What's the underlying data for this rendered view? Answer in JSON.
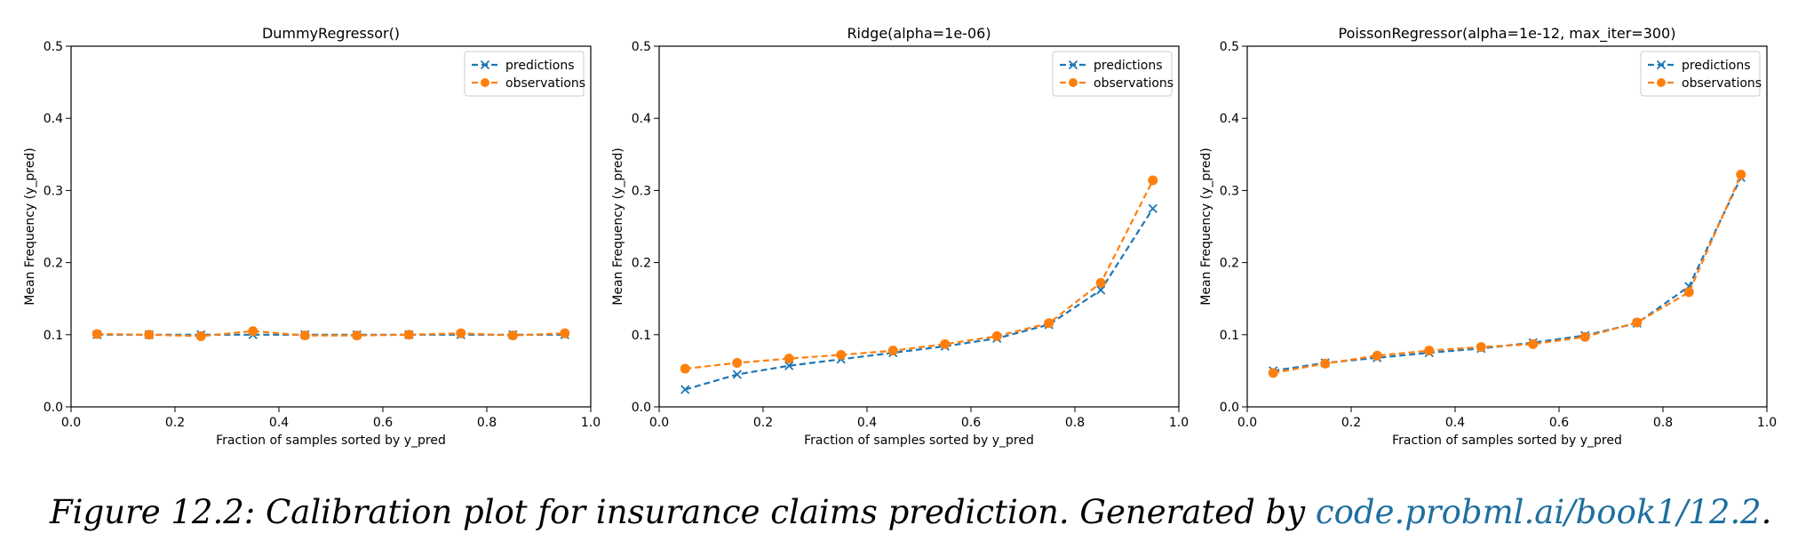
{
  "chart_data": [
    {
      "type": "line",
      "title": "DummyRegressor()",
      "xlabel": "Fraction of samples sorted by y_pred",
      "ylabel": "Mean Frequency (y_pred)",
      "xlim": [
        0.0,
        1.0
      ],
      "ylim": [
        0.0,
        0.5
      ],
      "xticks": [
        "0.0",
        "0.2",
        "0.4",
        "0.6",
        "0.8",
        "1.0"
      ],
      "yticks": [
        "0.0",
        "0.1",
        "0.2",
        "0.3",
        "0.4",
        "0.5"
      ],
      "legend_position": "top-right",
      "grid": false,
      "x": [
        0.05,
        0.15,
        0.25,
        0.35,
        0.45,
        0.55,
        0.65,
        0.75,
        0.85,
        0.95
      ],
      "series": [
        {
          "name": "predictions",
          "color": "#1f77b4",
          "marker": "x",
          "values": [
            0.1,
            0.1,
            0.1,
            0.1,
            0.1,
            0.1,
            0.1,
            0.1,
            0.1,
            0.1
          ]
        },
        {
          "name": "observations",
          "color": "#ff7f0e",
          "marker": "o",
          "values": [
            0.101,
            0.1,
            0.098,
            0.105,
            0.099,
            0.099,
            0.1,
            0.102,
            0.099,
            0.102
          ]
        }
      ]
    },
    {
      "type": "line",
      "title": "Ridge(alpha=1e-06)",
      "xlabel": "Fraction of samples sorted by y_pred",
      "ylabel": "Mean Frequency (y_pred)",
      "xlim": [
        0.0,
        1.0
      ],
      "ylim": [
        0.0,
        0.5
      ],
      "xticks": [
        "0.0",
        "0.2",
        "0.4",
        "0.6",
        "0.8",
        "1.0"
      ],
      "yticks": [
        "0.0",
        "0.1",
        "0.2",
        "0.3",
        "0.4",
        "0.5"
      ],
      "legend_position": "top-right",
      "grid": false,
      "x": [
        0.05,
        0.15,
        0.25,
        0.35,
        0.45,
        0.55,
        0.65,
        0.75,
        0.85,
        0.95
      ],
      "series": [
        {
          "name": "predictions",
          "color": "#1f77b4",
          "marker": "x",
          "values": [
            0.024,
            0.045,
            0.057,
            0.066,
            0.075,
            0.084,
            0.095,
            0.114,
            0.162,
            0.275
          ]
        },
        {
          "name": "observations",
          "color": "#ff7f0e",
          "marker": "o",
          "values": [
            0.053,
            0.061,
            0.067,
            0.072,
            0.078,
            0.087,
            0.098,
            0.116,
            0.172,
            0.314
          ]
        }
      ]
    },
    {
      "type": "line",
      "title": "PoissonRegressor(alpha=1e-12, max_iter=300)",
      "xlabel": "Fraction of samples sorted by y_pred",
      "ylabel": "Mean Frequency (y_pred)",
      "xlim": [
        0.0,
        1.0
      ],
      "ylim": [
        0.0,
        0.5
      ],
      "xticks": [
        "0.0",
        "0.2",
        "0.4",
        "0.6",
        "0.8",
        "1.0"
      ],
      "yticks": [
        "0.0",
        "0.1",
        "0.2",
        "0.3",
        "0.4",
        "0.5"
      ],
      "legend_position": "top-right",
      "grid": false,
      "x": [
        0.05,
        0.15,
        0.25,
        0.35,
        0.45,
        0.55,
        0.65,
        0.75,
        0.85,
        0.95
      ],
      "series": [
        {
          "name": "predictions",
          "color": "#1f77b4",
          "marker": "x",
          "values": [
            0.05,
            0.061,
            0.068,
            0.075,
            0.081,
            0.089,
            0.099,
            0.116,
            0.167,
            0.318
          ]
        },
        {
          "name": "observations",
          "color": "#ff7f0e",
          "marker": "o",
          "values": [
            0.047,
            0.06,
            0.071,
            0.078,
            0.083,
            0.087,
            0.097,
            0.117,
            0.159,
            0.322
          ]
        }
      ]
    }
  ],
  "caption": {
    "text": "Figure 12.2: Calibration plot for insurance claims prediction.  Generated by ",
    "link": "code.probml.ai/book1/12.2",
    "end": "."
  }
}
